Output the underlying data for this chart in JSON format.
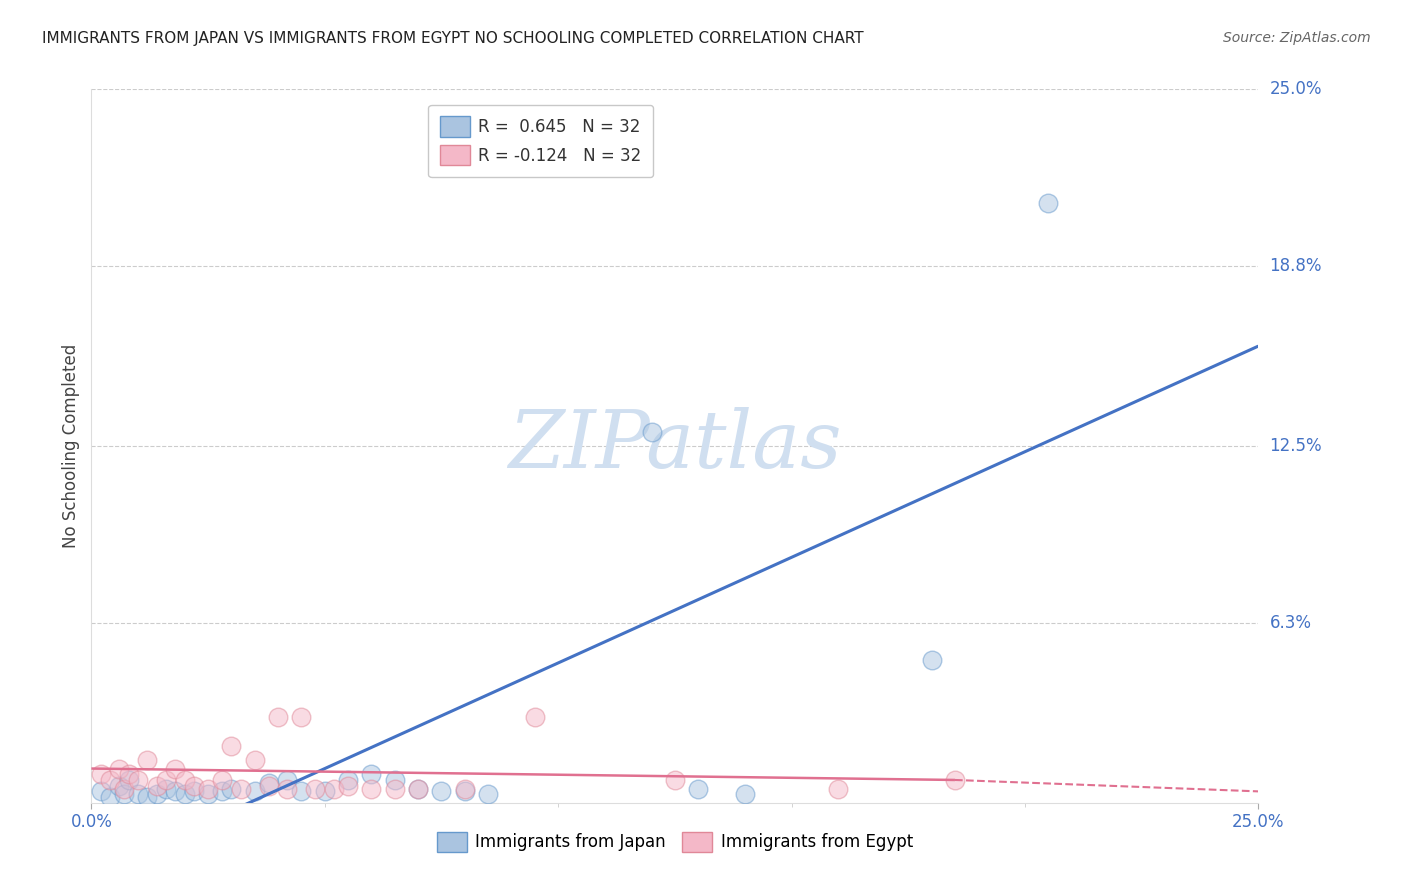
{
  "title": "IMMIGRANTS FROM JAPAN VS IMMIGRANTS FROM EGYPT NO SCHOOLING COMPLETED CORRELATION CHART",
  "source": "Source: ZipAtlas.com",
  "ylabel": "No Schooling Completed",
  "xlim": [
    0.0,
    0.25
  ],
  "ylim": [
    0.0,
    0.25
  ],
  "xtick_labels": [
    "0.0%",
    "25.0%"
  ],
  "xtick_vals": [
    0.0,
    0.25
  ],
  "ytick_labels": [
    "6.3%",
    "12.5%",
    "18.8%",
    "25.0%"
  ],
  "ytick_vals": [
    0.063,
    0.125,
    0.188,
    0.25
  ],
  "japan_scatter": [
    [
      0.002,
      0.004
    ],
    [
      0.004,
      0.002
    ],
    [
      0.006,
      0.006
    ],
    [
      0.007,
      0.003
    ],
    [
      0.008,
      0.008
    ],
    [
      0.01,
      0.003
    ],
    [
      0.012,
      0.002
    ],
    [
      0.014,
      0.003
    ],
    [
      0.016,
      0.005
    ],
    [
      0.018,
      0.004
    ],
    [
      0.02,
      0.003
    ],
    [
      0.022,
      0.004
    ],
    [
      0.025,
      0.003
    ],
    [
      0.028,
      0.004
    ],
    [
      0.03,
      0.005
    ],
    [
      0.035,
      0.004
    ],
    [
      0.038,
      0.007
    ],
    [
      0.042,
      0.008
    ],
    [
      0.045,
      0.004
    ],
    [
      0.05,
      0.004
    ],
    [
      0.055,
      0.008
    ],
    [
      0.06,
      0.01
    ],
    [
      0.065,
      0.008
    ],
    [
      0.07,
      0.005
    ],
    [
      0.075,
      0.004
    ],
    [
      0.08,
      0.004
    ],
    [
      0.085,
      0.003
    ],
    [
      0.12,
      0.13
    ],
    [
      0.13,
      0.005
    ],
    [
      0.14,
      0.003
    ],
    [
      0.18,
      0.05
    ],
    [
      0.205,
      0.21
    ]
  ],
  "egypt_scatter": [
    [
      0.002,
      0.01
    ],
    [
      0.004,
      0.008
    ],
    [
      0.006,
      0.012
    ],
    [
      0.007,
      0.005
    ],
    [
      0.008,
      0.01
    ],
    [
      0.01,
      0.008
    ],
    [
      0.012,
      0.015
    ],
    [
      0.014,
      0.006
    ],
    [
      0.016,
      0.008
    ],
    [
      0.018,
      0.012
    ],
    [
      0.02,
      0.008
    ],
    [
      0.022,
      0.006
    ],
    [
      0.025,
      0.005
    ],
    [
      0.028,
      0.008
    ],
    [
      0.03,
      0.02
    ],
    [
      0.032,
      0.005
    ],
    [
      0.035,
      0.015
    ],
    [
      0.038,
      0.006
    ],
    [
      0.04,
      0.03
    ],
    [
      0.042,
      0.005
    ],
    [
      0.045,
      0.03
    ],
    [
      0.048,
      0.005
    ],
    [
      0.052,
      0.005
    ],
    [
      0.055,
      0.006
    ],
    [
      0.06,
      0.005
    ],
    [
      0.065,
      0.005
    ],
    [
      0.07,
      0.005
    ],
    [
      0.08,
      0.005
    ],
    [
      0.095,
      0.03
    ],
    [
      0.125,
      0.008
    ],
    [
      0.16,
      0.005
    ],
    [
      0.185,
      0.008
    ]
  ],
  "japan_line": [
    0.0,
    -0.025,
    0.25,
    0.16
  ],
  "egypt_solid_line": [
    0.0,
    0.012,
    0.185,
    0.008
  ],
  "egypt_dashed_line": [
    0.185,
    0.008,
    0.25,
    0.004
  ],
  "background_color": "#ffffff",
  "scatter_alpha": 0.5,
  "scatter_size": 180,
  "watermark": "ZIPatlas",
  "watermark_color": "#d0dff0",
  "grid_color": "#cccccc",
  "japan_line_color": "#4472c4",
  "japan_fill": "#aac4e0",
  "japan_edge": "#6699cc",
  "egypt_line_color": "#e07090",
  "egypt_fill": "#f4b8c8",
  "egypt_edge": "#e08898",
  "legend_japan_label": "R =  0.645   N = 32",
  "legend_egypt_label": "R = -0.124   N = 32",
  "bottom_legend_japan": "Immigrants from Japan",
  "bottom_legend_egypt": "Immigrants from Egypt"
}
